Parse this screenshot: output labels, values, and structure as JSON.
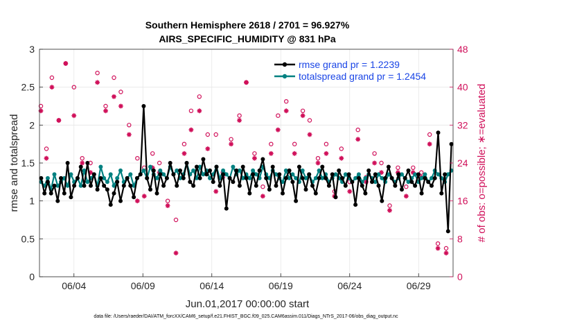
{
  "chart_data": {
    "type": "line",
    "title": "Southern Hemisphere 2618 / 2701 = 96.927%",
    "subtitle": "AIRS_SPECIFIC_HUMIDITY @ 831 hPa",
    "xlabel": "Jun.01,2017 00:00:00 start",
    "ylabel": "rmse and totalspread",
    "y2label": "# of obs: o=possible; ∗=evaluated",
    "xlim": [
      0.5,
      30.5
    ],
    "ylim": [
      0,
      3
    ],
    "y2lim": [
      0,
      48
    ],
    "xticks": [
      3,
      8,
      13,
      18,
      23,
      28
    ],
    "xticklabels": [
      "06/04",
      "06/09",
      "06/14",
      "06/19",
      "06/24",
      "06/29"
    ],
    "yticks": [
      "0",
      "0.5",
      "1",
      "1.5",
      "2",
      "2.5",
      "3"
    ],
    "y2ticks": [
      "0",
      "8",
      "16",
      "24",
      "32",
      "40",
      "48"
    ],
    "footer": "data file: /Users/raeder/DAI/ATM_forcXX/CAM6_setup/f.e21.FHIST_BGC.f09_025.CAM6assim.011/Diags_NTrS_2017-06/obs_diag_output.nc",
    "colors": {
      "rmse": "#000000",
      "spread": "#008080",
      "obs": "#d0105a",
      "legend_text": "#1a45e6"
    },
    "series": [
      {
        "name": "rmse grand pr = 1.2239",
        "color": "#000000",
        "marker": "circle",
        "values": [
          1.3,
          1.1,
          1.25,
          1.1,
          1.2,
          1.0,
          1.3,
          1.1,
          1.5,
          1.05,
          1.2,
          1.3,
          1.45,
          1.2,
          1.5,
          1.2,
          1.35,
          1.15,
          1.3,
          1.2,
          1.15,
          0.95,
          1.1,
          1.25,
          1.0,
          1.2,
          1.3,
          1.2,
          1.05,
          1.3,
          1.35,
          2.25,
          1.3,
          1.15,
          1.4,
          1.1,
          1.35,
          1.2,
          1.3,
          1.5,
          1.35,
          1.2,
          1.4,
          1.3,
          1.5,
          1.25,
          1.2,
          1.45,
          1.3,
          1.55,
          1.35,
          1.4,
          1.25,
          1.45,
          1.2,
          1.35,
          0.9,
          1.3,
          1.25,
          1.4,
          1.2,
          1.45,
          1.3,
          1.1,
          1.35,
          1.2,
          1.4,
          1.55,
          1.3,
          1.15,
          1.45,
          1.2,
          1.35,
          1.1,
          1.3,
          1.4,
          1.25,
          1.0,
          1.45,
          1.3,
          1.15,
          1.35,
          1.2,
          1.1,
          1.3,
          1.45,
          1.3,
          1.2,
          1.35,
          1.05,
          1.4,
          1.3,
          1.2,
          1.35,
          1.25,
          0.95,
          1.3,
          1.2,
          1.1,
          1.4,
          1.25,
          1.35,
          1.2,
          1.0,
          1.3,
          1.45,
          1.3,
          1.2,
          1.35,
          1.15,
          1.3,
          1.4,
          1.25,
          1.2,
          1.35,
          1.1,
          1.3,
          1.25,
          1.2,
          1.3,
          1.9,
          1.1,
          1.35,
          0.6,
          1.75
        ]
      },
      {
        "name": "totalspread grand pr = 1.2454",
        "color": "#008080",
        "marker": "circle",
        "values": [
          1.25,
          1.2,
          1.3,
          1.15,
          1.35,
          1.2,
          1.25,
          1.3,
          1.2,
          1.35,
          1.25,
          1.3,
          1.2,
          1.4,
          1.25,
          1.3,
          1.35,
          1.2,
          1.45,
          1.3,
          1.25,
          1.35,
          1.2,
          1.3,
          1.4,
          1.25,
          1.3,
          1.35,
          1.2,
          1.3,
          1.35,
          1.4,
          1.3,
          1.45,
          1.35,
          1.3,
          1.4,
          1.35,
          1.3,
          1.45,
          1.35,
          1.4,
          1.3,
          1.35,
          1.5,
          1.35,
          1.4,
          1.3,
          1.45,
          1.35,
          1.4,
          1.3,
          1.35,
          1.45,
          1.3,
          1.4,
          1.35,
          1.3,
          1.45,
          1.35,
          1.4,
          1.3,
          1.35,
          1.3,
          1.4,
          1.35,
          1.3,
          1.45,
          1.35,
          1.3,
          1.4,
          1.35,
          1.3,
          1.25,
          1.4,
          1.3,
          1.35,
          1.3,
          1.25,
          1.4,
          1.3,
          1.35,
          1.25,
          1.3,
          1.4,
          1.3,
          1.35,
          1.25,
          1.3,
          1.35,
          1.3,
          1.25,
          1.35,
          1.3,
          1.25,
          1.3,
          1.35,
          1.25,
          1.3,
          1.35,
          1.3,
          1.25,
          1.35,
          1.3,
          1.25,
          1.35,
          1.3,
          1.25,
          1.3,
          1.35,
          1.3,
          1.25,
          1.3,
          1.35,
          1.25,
          1.3,
          1.35,
          1.25,
          1.3,
          1.4,
          1.35,
          1.3,
          1.25,
          1.35,
          1.4
        ]
      },
      {
        "name": "obs possible",
        "axis": "right",
        "color": "#d0105a",
        "marker": "o",
        "x": [
          0.6,
          1.0,
          1.4,
          1.9,
          2.4,
          3.0,
          3.6,
          4.2,
          4.7,
          5.3,
          5.9,
          6.4,
          7.0,
          7.6,
          8.1,
          8.7,
          9.2,
          9.8,
          10.4,
          11.0,
          11.5,
          12.1,
          12.7,
          13.3,
          13.8,
          14.4,
          15.0,
          15.5,
          16.1,
          16.7,
          17.3,
          17.8,
          18.4,
          19.0,
          19.6,
          20.1,
          20.7,
          21.3,
          21.9,
          22.4,
          23.0,
          23.6,
          24.2,
          24.8,
          25.3,
          25.9,
          26.5,
          27.1,
          27.6,
          28.2,
          28.8,
          29.4,
          30.0
        ],
        "values": [
          36,
          27,
          42,
          33,
          45,
          40,
          25,
          24,
          43,
          36,
          42,
          39,
          32,
          25,
          23,
          26,
          24,
          16,
          12,
          28,
          35,
          38,
          30,
          30,
          22,
          29,
          34,
          41,
          26,
          19,
          28,
          34,
          37,
          28,
          35,
          33,
          25,
          28,
          18,
          27,
          20,
          31,
          21,
          26,
          24,
          15,
          23,
          19,
          23,
          22,
          30,
          7,
          6
        ]
      },
      {
        "name": "obs evaluated",
        "axis": "right",
        "color": "#d0105a",
        "marker": "star",
        "x": [
          0.6,
          1.0,
          1.4,
          1.9,
          2.4,
          3.0,
          3.6,
          4.2,
          4.7,
          5.3,
          5.9,
          6.4,
          7.0,
          7.6,
          8.1,
          8.7,
          9.2,
          9.8,
          10.4,
          11.0,
          11.5,
          12.1,
          12.7,
          13.3,
          13.8,
          14.4,
          15.0,
          15.5,
          16.1,
          16.7,
          17.3,
          17.8,
          18.4,
          19.0,
          19.6,
          20.1,
          20.7,
          21.3,
          21.9,
          22.4,
          23.0,
          23.6,
          24.2,
          24.8,
          25.3,
          25.9,
          26.5,
          27.1,
          27.6,
          28.2,
          28.8,
          29.4,
          30.0
        ],
        "values": [
          35,
          25,
          40,
          33,
          45,
          34,
          24,
          22,
          41,
          35,
          38,
          36,
          30,
          16,
          17,
          23,
          22,
          15,
          5,
          26,
          31,
          35,
          27,
          18,
          21,
          28,
          33,
          41,
          25,
          17,
          26,
          31,
          35,
          26,
          34,
          30,
          24,
          26,
          17,
          25,
          18,
          29,
          20,
          24,
          22,
          14,
          22,
          17,
          22,
          21,
          28,
          6,
          5
        ]
      }
    ]
  }
}
